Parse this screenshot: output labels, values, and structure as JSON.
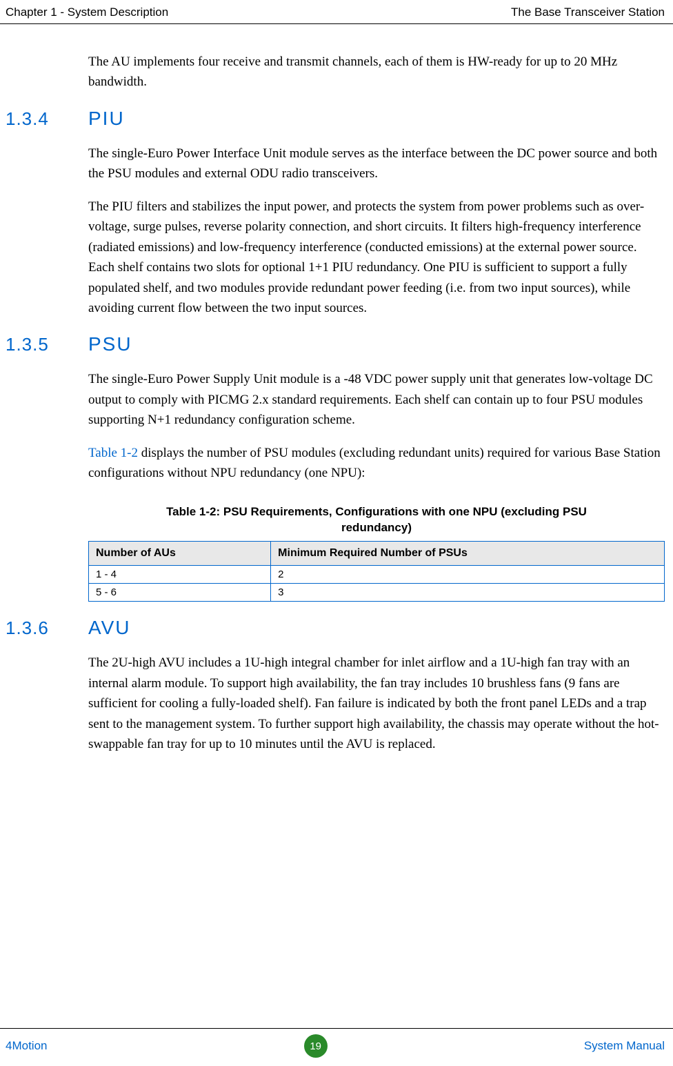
{
  "header": {
    "left": "Chapter 1 - System Description",
    "right": "The Base Transceiver Station"
  },
  "intro_para": "The AU implements four receive and transmit channels, each of them is HW-ready for up to 20 MHz bandwidth.",
  "sections": {
    "s134": {
      "num": "1.3.4",
      "title": "PIU"
    },
    "s135": {
      "num": "1.3.5",
      "title": "PSU"
    },
    "s136": {
      "num": "1.3.6",
      "title": "AVU"
    }
  },
  "piu_p1": "The single-Euro Power Interface Unit module serves as the interface between the DC power source and both the PSU modules and external ODU radio transceivers.",
  "piu_p2": "The PIU filters and stabilizes the input power, and protects the system from power problems such as over-voltage, surge pulses, reverse polarity connection, and short circuits. It filters high-frequency interference (radiated emissions) and low-frequency interference (conducted emissions) at the external power source. Each shelf contains two slots for optional 1+1 PIU redundancy. One PIU is sufficient to support a fully populated shelf, and two modules provide redundant power feeding (i.e. from two input sources), while avoiding current flow between the two input sources.",
  "psu_p1": "The single-Euro Power Supply Unit module is a -48 VDC power supply unit that generates low-voltage DC output to comply with PICMG 2.x standard requirements. Each shelf can contain up to four PSU modules supporting N+1 redundancy configuration scheme.",
  "psu_p2_link": "Table 1-2",
  "psu_p2_rest": " displays the number of PSU modules (excluding redundant units) required for various Base Station configurations without NPU redundancy (one NPU):",
  "table": {
    "caption": "Table 1-2: PSU Requirements, Configurations with one NPU (excluding PSU redundancy)",
    "header": [
      "Number of AUs",
      "Minimum Required Number of PSUs"
    ],
    "rows": [
      [
        "1 - 4",
        "2"
      ],
      [
        "5 - 6",
        "3"
      ]
    ]
  },
  "avu_p1": "The 2U-high AVU includes a 1U-high integral chamber for inlet airflow and a 1U-high fan tray with an internal alarm module. To support high availability, the fan tray includes 10 brushless fans (9 fans are sufficient for cooling a fully-loaded shelf). Fan failure is indicated by both the front panel LEDs and a trap sent to the management system. To further support high availability, the chassis may operate without the hot-swappable fan tray for up to 10 minutes until the AVU is replaced.",
  "footer": {
    "left": "4Motion",
    "page": "19",
    "right": "System Manual"
  }
}
